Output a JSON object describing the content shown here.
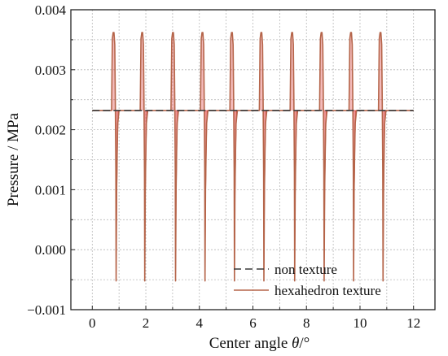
{
  "chart_data": {
    "type": "line",
    "xlabel_prefix": "Center angle ",
    "xlabel_symbol": "θ",
    "xlabel_suffix": "/°",
    "ylabel": "Pressure / MPa",
    "xlim": [
      -0.8,
      12.8
    ],
    "ylim": [
      -0.001,
      0.004
    ],
    "x_ticks": [
      0,
      2,
      4,
      6,
      8,
      10,
      12
    ],
    "y_ticks": [
      -0.001,
      0.0,
      0.001,
      0.002,
      0.003,
      0.004
    ],
    "x_tick_labels": [
      "0",
      "2",
      "4",
      "6",
      "8",
      "10",
      "12"
    ],
    "y_tick_labels": [
      "−0.001",
      "0.000",
      "0.001",
      "0.002",
      "0.003",
      "0.004"
    ],
    "grid": true,
    "legend_position": "bottom-right",
    "series": [
      {
        "name": "non texture",
        "style": "dashed",
        "color": "#3a3a3a",
        "x": [
          0,
          12
        ],
        "y": [
          0.00232,
          0.00232
        ]
      },
      {
        "name": "hexahedron texture",
        "style": "solid",
        "color": "#b5654a",
        "baseline": 0.00232,
        "peak": 0.00362,
        "trough": -0.00052,
        "spike_angles": [
          0.88,
          1.95,
          3.1,
          4.2,
          5.3,
          6.4,
          7.55,
          8.65,
          9.75,
          10.85
        ],
        "x_range": [
          0,
          12
        ]
      }
    ],
    "colors": {
      "spike_fill": "#e03c3c",
      "grid": "#b8b8b8",
      "axis": "#222222"
    }
  }
}
